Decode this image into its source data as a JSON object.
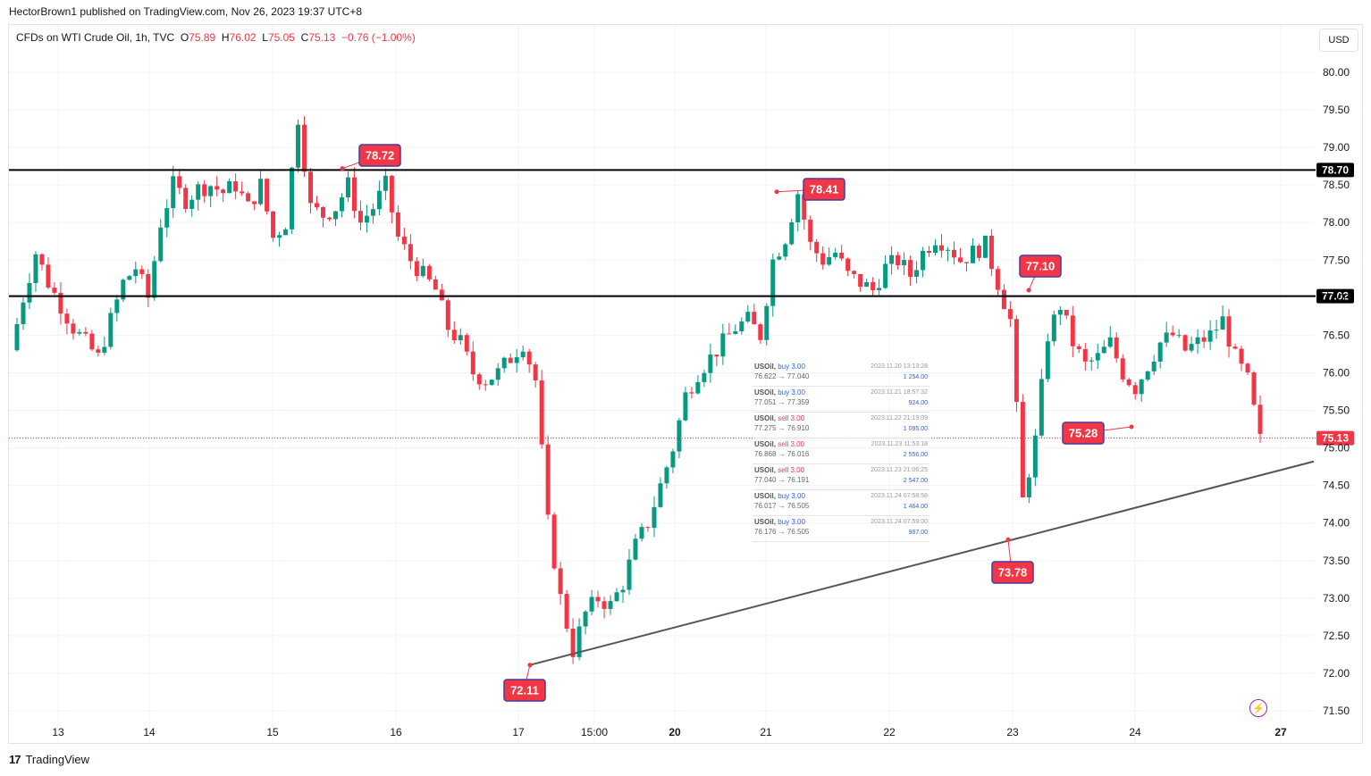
{
  "header": {
    "published": "HectorBrown1 published on TradingView.com, Nov 26, 2023 19:37 UTC+8"
  },
  "legend": {
    "symbol": "CFDs on WTI Crude Oil, 1h, TVC",
    "o_label": "O",
    "o_value": "75.89",
    "h_label": "H",
    "h_value": "76.02",
    "l_label": "L",
    "l_value": "75.05",
    "c_label": "C",
    "c_value": "75.13",
    "change": "−0.76 (−1.00%)"
  },
  "currency": "USD",
  "footer": {
    "brand": "TradingView",
    "logo": "17"
  },
  "colors": {
    "up": "#089981",
    "down": "#f23645",
    "label_bg": "#f23645",
    "label_border": "#4a3aa0",
    "trendline": "#555555",
    "hline": "#000000"
  },
  "icons": {
    "lightning": "lightning-icon",
    "logo": "tradingview-logo-icon"
  },
  "chart_data": {
    "type": "candlestick",
    "ylim": [
      71.35,
      80.25
    ],
    "y_ticks": [
      "80.00",
      "79.50",
      "79.00",
      "78.50",
      "78.00",
      "77.50",
      "77.00",
      "76.50",
      "76.00",
      "75.50",
      "75.00",
      "74.50",
      "74.00",
      "73.50",
      "73.00",
      "72.50",
      "72.00",
      "71.50"
    ],
    "x_labels": [
      {
        "label": "13",
        "bold": false
      },
      {
        "label": "14",
        "bold": false
      },
      {
        "label": "15",
        "bold": false
      },
      {
        "label": "16",
        "bold": false
      },
      {
        "label": "17",
        "bold": false
      },
      {
        "label": "15:00",
        "bold": false
      },
      {
        "label": "20",
        "bold": true
      },
      {
        "label": "21",
        "bold": false
      },
      {
        "label": "22",
        "bold": false
      },
      {
        "label": "23",
        "bold": false
      },
      {
        "label": "24",
        "bold": false
      },
      {
        "label": "27",
        "bold": true
      }
    ],
    "horizontal_levels": [
      {
        "value": 78.7,
        "label": "78.70"
      },
      {
        "value": 77.02,
        "label": "77.02"
      }
    ],
    "last_price": {
      "value": 75.13,
      "label": "75.13"
    },
    "price_labels": [
      {
        "value": 78.72,
        "label": "78.72"
      },
      {
        "value": 78.41,
        "label": "78.41"
      },
      {
        "value": 77.1,
        "label": "77.10"
      },
      {
        "value": 75.28,
        "label": "75.28"
      },
      {
        "value": 73.78,
        "label": "73.78"
      },
      {
        "value": 72.11,
        "label": "72.11"
      }
    ],
    "trendline": {
      "from": 72.11,
      "to": 74.82
    },
    "path": [
      76.3,
      77.0,
      77.6,
      77.2,
      76.9,
      76.6,
      76.4,
      76.2,
      76.7,
      77.2,
      77.4,
      77.0,
      78.0,
      78.5,
      78.3,
      78.45,
      78.5,
      78.4,
      78.5,
      78.2,
      78.5,
      77.8,
      78.0,
      79.4,
      78.2,
      78.1,
      78.2,
      78.5,
      78.0,
      78.2,
      78.5,
      77.8,
      77.5,
      77.3,
      77.1,
      76.6,
      76.4,
      76.0,
      75.9,
      76.0,
      76.2,
      76.4,
      75.9,
      74.0,
      73.0,
      72.3,
      72.8,
      73.0,
      72.9,
      73.2,
      73.7,
      74.0,
      74.5,
      75.0,
      75.7,
      76.0,
      76.2,
      76.4,
      76.6,
      76.7,
      76.5,
      77.5,
      77.8,
      78.4,
      77.7,
      77.5,
      77.6,
      77.3,
      77.2,
      77.1,
      77.4,
      77.5,
      77.3,
      77.6,
      77.8,
      77.7,
      77.5,
      77.6,
      77.7,
      77.2,
      76.7,
      74.3,
      75.1,
      76.5,
      76.9,
      76.4,
      76.1,
      76.2,
      76.4,
      76.0,
      75.8,
      76.1,
      76.4,
      76.5,
      76.3,
      76.4,
      76.5,
      76.7,
      76.2,
      75.9,
      75.1
    ]
  },
  "trades": [
    {
      "symbol": "USOil,",
      "side": "buy",
      "qty": "3.00",
      "from": "76.622",
      "to": "77.040",
      "time": "2023.11.20 13:13:28",
      "amount": "1 254.00"
    },
    {
      "symbol": "USOil,",
      "side": "buy",
      "qty": "3.00",
      "from": "77.051",
      "to": "77.359",
      "time": "2023.11.21 18:57:32",
      "amount": "924.00"
    },
    {
      "symbol": "USOil,",
      "side": "sell",
      "qty": "3.00",
      "from": "77.275",
      "to": "76.910",
      "time": "2023.11.22 21:19:09",
      "amount": "1 095.00"
    },
    {
      "symbol": "USOil,",
      "side": "sell",
      "qty": "3.00",
      "from": "76.868",
      "to": "76.016",
      "time": "2023.11.23 11:53:18",
      "amount": "2 556.00"
    },
    {
      "symbol": "USOil,",
      "side": "sell",
      "qty": "3.00",
      "from": "77.040",
      "to": "76.191",
      "time": "2023.11.23 21:06:25",
      "amount": "2 547.00"
    },
    {
      "symbol": "USOil,",
      "side": "buy",
      "qty": "3.00",
      "from": "76.017",
      "to": "76.505",
      "time": "2023.11.24 07:58:58",
      "amount": "1 464.00"
    },
    {
      "symbol": "USOil,",
      "side": "buy",
      "qty": "3.00",
      "from": "76.176",
      "to": "76.505",
      "time": "2023.11.24 07:59:00",
      "amount": "987.00"
    }
  ]
}
